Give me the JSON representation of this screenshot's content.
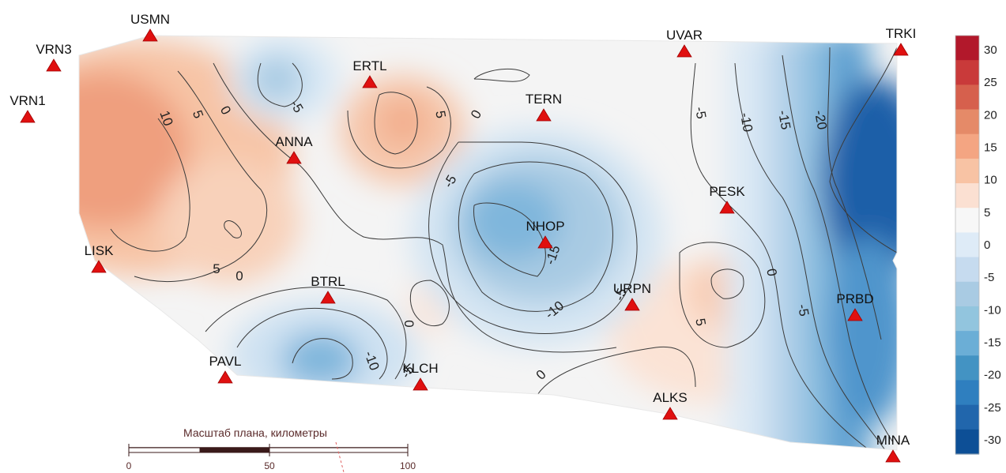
{
  "stations": [
    {
      "id": "USMN",
      "label": "USMN"
    },
    {
      "id": "VRN3",
      "label": "VRN3"
    },
    {
      "id": "VRN1",
      "label": "VRN1"
    },
    {
      "id": "ERTL",
      "label": "ERTL"
    },
    {
      "id": "ANNA",
      "label": "ANNA"
    },
    {
      "id": "TERN",
      "label": "TERN"
    },
    {
      "id": "UVAR",
      "label": "UVAR"
    },
    {
      "id": "TRKI",
      "label": "TRKI"
    },
    {
      "id": "PESK",
      "label": "PESK"
    },
    {
      "id": "NHOP",
      "label": "NHOP"
    },
    {
      "id": "LISK",
      "label": "LISK"
    },
    {
      "id": "BTRL",
      "label": "BTRL"
    },
    {
      "id": "URPN",
      "label": "URPN"
    },
    {
      "id": "PRBD",
      "label": "PRBD"
    },
    {
      "id": "PAVL",
      "label": "PAVL"
    },
    {
      "id": "KLCH",
      "label": "KLCH"
    },
    {
      "id": "ALKS",
      "label": "ALKS"
    },
    {
      "id": "MINA",
      "label": "MINA"
    }
  ],
  "contour_labels": [
    "10",
    "5",
    "0",
    "-5",
    "5",
    "0",
    "-5",
    "-5",
    "-10",
    "-15",
    "-20",
    "-5",
    "-15",
    "5",
    "-10",
    "0",
    "-10",
    "0",
    "-5",
    "0",
    "5",
    "-5",
    "0"
  ],
  "legend": {
    "ticks": [
      "30",
      "25",
      "20",
      "15",
      "10",
      "5",
      "0",
      "-5",
      "-10",
      "-15",
      "-20",
      "-25",
      "-30"
    ],
    "colors": [
      "#b2182b",
      "#c93a3a",
      "#d6604d",
      "#e58a68",
      "#f4a582",
      "#f8c3a4",
      "#fbe0d2",
      "#f7f7f7",
      "#deebf7",
      "#c6dbef",
      "#a9cbe3",
      "#92c5de",
      "#6baed6",
      "#4393c3",
      "#2f7fbf",
      "#2166ac",
      "#0d4f96"
    ]
  },
  "scale_bar": {
    "title": "Масштаб плана, километры",
    "ticks": [
      "0",
      "50",
      "100"
    ]
  },
  "colors": {
    "marker": "#e01010",
    "contour_line": "#3a3a3a"
  }
}
